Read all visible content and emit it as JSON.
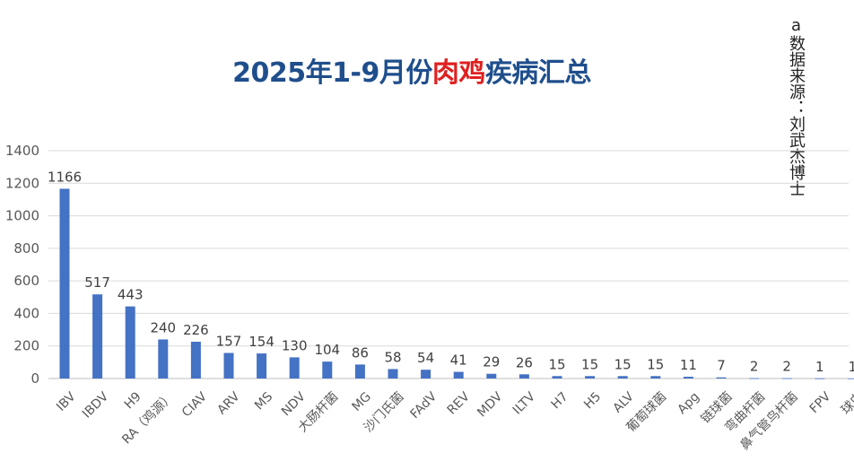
{
  "title": {
    "part1": "2025年1-9月份",
    "part2": "肉鸡",
    "part3": "疾病汇总"
  },
  "source_note": "a数据来源：刘武杰博士",
  "colors": {
    "bar": "#4472c4",
    "title_blue": "#1f4e8c",
    "title_red": "#e02020",
    "grid": "#d9d9d9"
  },
  "chart_data": {
    "type": "bar",
    "title": "2025年1-9月份肉鸡疾病汇总",
    "categories": [
      "IBV",
      "IBDV",
      "H9",
      "RA（鸡源）",
      "CIAV",
      "ARV",
      "MS",
      "NDV",
      "大肠杆菌",
      "MG",
      "沙门氏菌",
      "FAdV",
      "REV",
      "MDV",
      "ILTV",
      "H7",
      "H5",
      "ALV",
      "葡萄球菌",
      "Apg",
      "链球菌",
      "弯曲杆菌",
      "鼻气管鸟杆菌",
      "FPV",
      "球虫"
    ],
    "values": [
      1166,
      517,
      443,
      240,
      226,
      157,
      154,
      130,
      104,
      86,
      58,
      54,
      41,
      29,
      26,
      15,
      15,
      15,
      15,
      11,
      7,
      2,
      2,
      1,
      1
    ],
    "yticks": [
      0,
      200,
      400,
      600,
      800,
      1000,
      1200,
      1400
    ],
    "ylim": [
      0,
      1400
    ],
    "xlabel": "",
    "ylabel": "",
    "grid": true,
    "legend": "none"
  }
}
